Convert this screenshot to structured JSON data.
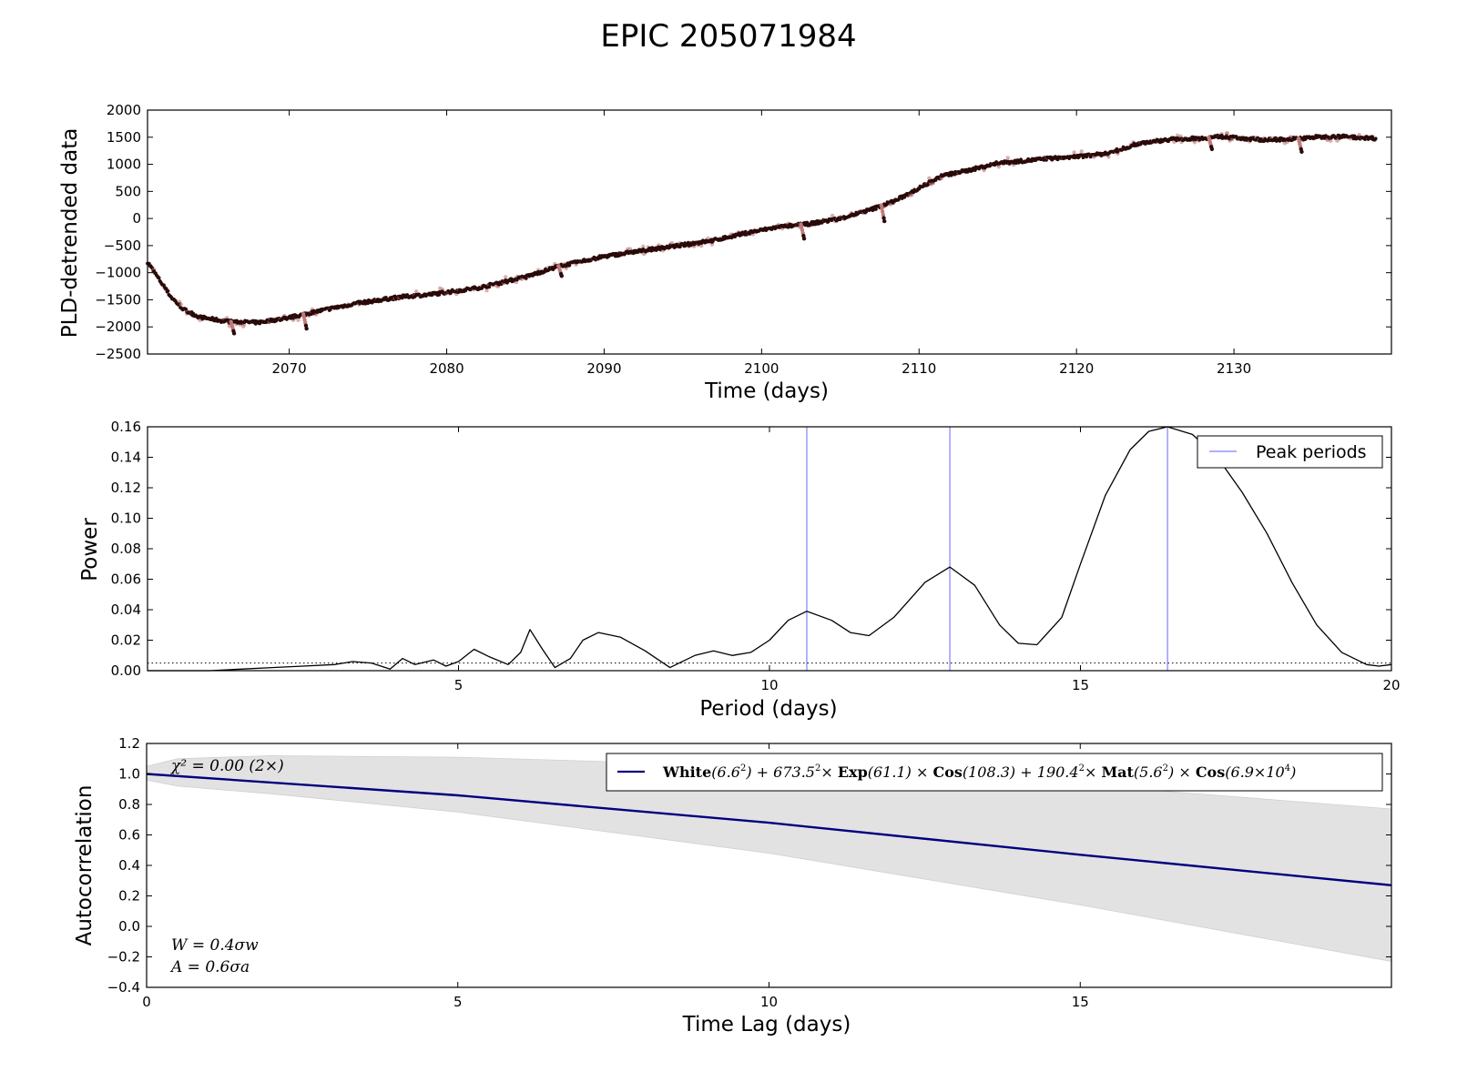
{
  "title": "EPIC 205071984",
  "chart_data": [
    {
      "type": "scatter",
      "ylabel": "PLD-detrended data",
      "xlabel": "Time (days)",
      "xlim": [
        2061,
        2140
      ],
      "ylim": [
        -2500,
        2000
      ],
      "xticks": [
        2070,
        2080,
        2090,
        2100,
        2110,
        2120,
        2130
      ],
      "yticks": [
        -2500,
        -2000,
        -1500,
        -1000,
        -500,
        0,
        500,
        1000,
        1500,
        2000
      ],
      "ytick_labels": [
        "−2500",
        "−2000",
        "−1500",
        "−1000",
        "−500",
        "0",
        "500",
        "1000",
        "1500",
        "2000"
      ],
      "grid": false,
      "trend": [
        {
          "x": 2061.0,
          "y": -800
        },
        {
          "x": 2061.8,
          "y": -1150
        },
        {
          "x": 2062.5,
          "y": -1450
        },
        {
          "x": 2063.3,
          "y": -1680
        },
        {
          "x": 2064.3,
          "y": -1820
        },
        {
          "x": 2066.0,
          "y": -1900
        },
        {
          "x": 2068.0,
          "y": -1920
        },
        {
          "x": 2070.0,
          "y": -1830
        },
        {
          "x": 2072.0,
          "y": -1700
        },
        {
          "x": 2074.0,
          "y": -1580
        },
        {
          "x": 2077.0,
          "y": -1450
        },
        {
          "x": 2079.0,
          "y": -1400
        },
        {
          "x": 2082.0,
          "y": -1280
        },
        {
          "x": 2085.0,
          "y": -1080
        },
        {
          "x": 2087.0,
          "y": -890
        },
        {
          "x": 2090.0,
          "y": -700
        },
        {
          "x": 2093.0,
          "y": -570
        },
        {
          "x": 2095.0,
          "y": -490
        },
        {
          "x": 2097.0,
          "y": -400
        },
        {
          "x": 2099.0,
          "y": -270
        },
        {
          "x": 2101.0,
          "y": -160
        },
        {
          "x": 2103.0,
          "y": -100
        },
        {
          "x": 2105.0,
          "y": 0
        },
        {
          "x": 2107.0,
          "y": 170
        },
        {
          "x": 2108.5,
          "y": 330
        },
        {
          "x": 2110.0,
          "y": 560
        },
        {
          "x": 2111.5,
          "y": 790
        },
        {
          "x": 2113.0,
          "y": 880
        },
        {
          "x": 2115.0,
          "y": 1020
        },
        {
          "x": 2118.0,
          "y": 1100
        },
        {
          "x": 2120.0,
          "y": 1140
        },
        {
          "x": 2122.0,
          "y": 1200
        },
        {
          "x": 2124.0,
          "y": 1390
        },
        {
          "x": 2126.0,
          "y": 1460
        },
        {
          "x": 2128.0,
          "y": 1480
        },
        {
          "x": 2129.0,
          "y": 1510
        },
        {
          "x": 2132.0,
          "y": 1450
        },
        {
          "x": 2134.0,
          "y": 1470
        },
        {
          "x": 2135.0,
          "y": 1500
        },
        {
          "x": 2137.0,
          "y": 1510
        },
        {
          "x": 2139.0,
          "y": 1480
        }
      ],
      "dips": [
        {
          "x": 2066.4,
          "y": -2120
        },
        {
          "x": 2071.0,
          "y": -2030
        },
        {
          "x": 2087.2,
          "y": -1060
        },
        {
          "x": 2102.6,
          "y": -370
        },
        {
          "x": 2107.7,
          "y": -50
        },
        {
          "x": 2128.5,
          "y": 1280
        },
        {
          "x": 2134.2,
          "y": 1230
        }
      ]
    },
    {
      "type": "line",
      "ylabel": "Power",
      "xlabel": "Period (days)",
      "xlim": [
        0,
        20
      ],
      "ylim": [
        0,
        0.16
      ],
      "xticks": [
        5,
        10,
        15,
        20
      ],
      "yticks": [
        0.0,
        0.02,
        0.04,
        0.06,
        0.08,
        0.1,
        0.12,
        0.14,
        0.16
      ],
      "ytick_labels": [
        "0.00",
        "0.02",
        "0.04",
        "0.06",
        "0.08",
        "0.10",
        "0.12",
        "0.14",
        "0.16"
      ],
      "grid": false,
      "legend": {
        "position": "top-right",
        "entries": [
          "Peak periods"
        ]
      },
      "peak_periods": [
        10.6,
        12.9,
        16.4
      ],
      "threshold": 0.005,
      "series": [
        {
          "points": [
            [
              0.0,
              0.0
            ],
            [
              1.0,
              0.0
            ],
            [
              1.5,
              0.001
            ],
            [
              2.0,
              0.002
            ],
            [
              2.5,
              0.003
            ],
            [
              3.0,
              0.004
            ],
            [
              3.3,
              0.006
            ],
            [
              3.6,
              0.005
            ],
            [
              3.9,
              0.001
            ],
            [
              4.1,
              0.008
            ],
            [
              4.3,
              0.004
            ],
            [
              4.6,
              0.007
            ],
            [
              4.8,
              0.003
            ],
            [
              5.0,
              0.006
            ],
            [
              5.25,
              0.014
            ],
            [
              5.5,
              0.009
            ],
            [
              5.8,
              0.004
            ],
            [
              6.0,
              0.012
            ],
            [
              6.15,
              0.027
            ],
            [
              6.35,
              0.014
            ],
            [
              6.55,
              0.002
            ],
            [
              6.8,
              0.008
            ],
            [
              7.0,
              0.02
            ],
            [
              7.25,
              0.025
            ],
            [
              7.6,
              0.022
            ],
            [
              8.0,
              0.013
            ],
            [
              8.4,
              0.002
            ],
            [
              8.8,
              0.01
            ],
            [
              9.1,
              0.013
            ],
            [
              9.4,
              0.01
            ],
            [
              9.7,
              0.012
            ],
            [
              10.0,
              0.02
            ],
            [
              10.3,
              0.033
            ],
            [
              10.6,
              0.039
            ],
            [
              11.0,
              0.033
            ],
            [
              11.3,
              0.025
            ],
            [
              11.6,
              0.023
            ],
            [
              12.0,
              0.035
            ],
            [
              12.5,
              0.058
            ],
            [
              12.9,
              0.068
            ],
            [
              13.3,
              0.056
            ],
            [
              13.7,
              0.03
            ],
            [
              14.0,
              0.018
            ],
            [
              14.3,
              0.017
            ],
            [
              14.7,
              0.035
            ],
            [
              15.0,
              0.07
            ],
            [
              15.4,
              0.115
            ],
            [
              15.8,
              0.145
            ],
            [
              16.1,
              0.157
            ],
            [
              16.4,
              0.16
            ],
            [
              16.8,
              0.155
            ],
            [
              17.2,
              0.14
            ],
            [
              17.6,
              0.117
            ],
            [
              18.0,
              0.09
            ],
            [
              18.4,
              0.058
            ],
            [
              18.8,
              0.03
            ],
            [
              19.2,
              0.012
            ],
            [
              19.6,
              0.004
            ],
            [
              19.8,
              0.003
            ],
            [
              20.0,
              0.004
            ]
          ]
        }
      ]
    },
    {
      "type": "area",
      "ylabel": "Autocorrelation",
      "xlabel": "Time Lag (days)",
      "xlim": [
        0,
        20
      ],
      "ylim": [
        -0.4,
        1.2
      ],
      "xticks": [
        0,
        5,
        10,
        15
      ],
      "yticks": [
        -0.4,
        -0.2,
        0.0,
        0.2,
        0.4,
        0.6,
        0.8,
        1.0,
        1.2
      ],
      "ytick_labels": [
        "−0.4",
        "−0.2",
        "0.0",
        "0.2",
        "0.4",
        "0.6",
        "0.8",
        "1.0",
        "1.2"
      ],
      "grid": false,
      "series": [
        {
          "name": "White(6.6²) + 673.5² × Exp(61.1) × Cos(108.3) + 190.4² × Mat(5.6²) × Cos(6.9×10⁴)",
          "points": [
            [
              0,
              1.0
            ],
            [
              5,
              0.86
            ],
            [
              10,
              0.68
            ],
            [
              15,
              0.47
            ],
            [
              20,
              0.27
            ]
          ]
        }
      ],
      "band_upper": [
        [
          0,
          1.05
        ],
        [
          0.5,
          1.1
        ],
        [
          2,
          1.12
        ],
        [
          5,
          1.11
        ],
        [
          10,
          1.05
        ],
        [
          15,
          0.93
        ],
        [
          20,
          0.77
        ]
      ],
      "band_lower": [
        [
          0,
          0.96
        ],
        [
          0.5,
          0.92
        ],
        [
          2,
          0.87
        ],
        [
          5,
          0.75
        ],
        [
          10,
          0.48
        ],
        [
          15,
          0.14
        ],
        [
          20,
          -0.23
        ]
      ],
      "legend": {
        "position": "top-right"
      },
      "annotations": {
        "chi2": "χ² = 0.00 (2×)",
        "w": "W = 0.4σw",
        "a": "A = 0.6σa"
      }
    }
  ],
  "legend_terms": {
    "white": "White",
    "white_arg": "(6.6",
    "white_close": ")",
    "plus1": "+ 673.5",
    "times1": "×",
    "exp": "Exp",
    "exp_arg": "(61.1)",
    "times2": "×",
    "cos1": "Cos",
    "cos1_arg": "(108.3)",
    "plus2": "+ 190.4",
    "times3": "×",
    "mat": "Mat",
    "mat_arg": "(5.6",
    "mat_close": ")",
    "times4": "×",
    "cos2": "Cos",
    "cos2_arg": "(6.9×10",
    "cos2_close": ")",
    "sq": "2",
    "pow4": "4"
  },
  "colors": {
    "data_points": "#2b0a0a",
    "data_halo": "#c07a7a",
    "peak_lines": "#8080ff",
    "acf_line": "#00007f",
    "band": "#e2e2e2"
  }
}
